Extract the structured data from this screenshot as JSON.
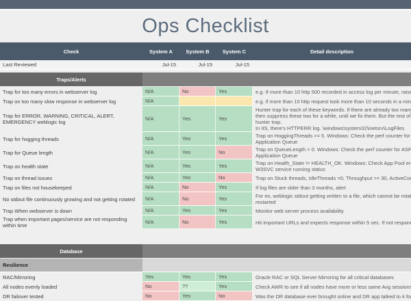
{
  "app": {
    "title": "Ops Checklist"
  },
  "colors": {
    "topbar": "#566372",
    "header": "#4a5a6b",
    "title_text": "#5c6c7d",
    "section_left": "#666666",
    "section_right": "#7f7f7f",
    "subsection_left": "#b4b4b4",
    "subsection_right": "#d9d9d9",
    "status_green": "#b5dec2",
    "status_lightgreen": "#cfeed6",
    "status_red": "#f2c4c3",
    "status_yellow": "#f9e7ad",
    "page_bg": "#efefef"
  },
  "table": {
    "columns": [
      "Check",
      "System A",
      "System B",
      "System C",
      "Detail description"
    ],
    "last_reviewed": {
      "label": "Last Reviewed",
      "values": [
        "Jul-15",
        "Jul-15",
        "Jul-15"
      ]
    },
    "sections": [
      {
        "title": "Traps/Alerts",
        "rows": [
          {
            "check": "Trap for too many errors in webserver log",
            "cells": [
              {
                "text": "N/A",
                "status": "green"
              },
              {
                "text": "No",
                "status": "red"
              },
              {
                "text": "Yes",
                "status": "green"
              }
            ],
            "detail_lines": [
              "e.g. If more than 10 http 500 recorded in access log per minute, raise trap."
            ]
          },
          {
            "check": "Trap on too many slow response in webserver log",
            "cells": [
              {
                "text": "N/A",
                "status": "green"
              },
              {
                "text": "",
                "status": "yellow"
              },
              {
                "text": "",
                "status": "yellow"
              }
            ],
            "detail_lines": [
              "e.g. if more than 10 http request took more than 10 seconds in a minute, raise"
            ]
          },
          {
            "check": "Trap for ERROR, WARNING, CRITICAL, ALERT, EMERGENCY weblogic log",
            "cells": [
              {
                "text": "N/A",
                "status": "green"
              },
              {
                "text": "Yes",
                "status": "green"
              },
              {
                "text": "Yes",
                "status": "green"
              }
            ],
            "detail_lines": [
              "Hunter trap for each of these keywords. If there are already too many ERROR a",
              "then suppress these two for a while, until we fix them. But the rest of the keyw",
              "hunter trap.",
              " In IIS, there's HTTPERR log. \\windows\\system32\\inetsrv\\LogFiles"
            ]
          },
          {
            "check": "Trap for hogging threads",
            "cells": [
              {
                "text": "N/A",
                "status": "green"
              },
              {
                "text": "Yes",
                "status": "green"
              },
              {
                "text": "Yes",
                "status": "green"
              }
            ],
            "detail_lines": [
              "Trap on HoggingThreads >= 5. Windows: Check the perf counter for ASP.NET R",
              "Application Queue"
            ]
          },
          {
            "check": "Trap for Queue length",
            "cells": [
              {
                "text": "N/A",
                "status": "green"
              },
              {
                "text": "Yes",
                "status": "green"
              },
              {
                "text": "No",
                "status": "red"
              }
            ],
            "detail_lines": [
              "Trap on QueueLength > 0. Windows: Check the perf counter for ASP.NET Requ",
              "Application Queue"
            ]
          },
          {
            "check": "Trap on health state",
            "cells": [
              {
                "text": "N/A",
                "status": "green"
              },
              {
                "text": "Yes",
                "status": "green"
              },
              {
                "text": "Yes",
                "status": "green"
              }
            ],
            "detail_lines": [
              "Trap on Health_State != HEALTH_OK. Windows: Check App Pool enabled, Webs",
              "W3SVC service running status"
            ]
          },
          {
            "check": "Trap on thread issues",
            "cells": [
              {
                "text": "N/A",
                "status": "green"
              },
              {
                "text": "Yes",
                "status": "green"
              },
              {
                "text": "No",
                "status": "red"
              }
            ],
            "detail_lines": [
              "Trap on Stuck threads, IdleThreads =0, Throughput >= 30, ActiveConnectionsH"
            ]
          },
          {
            "check": "Trap on files not housekeeped",
            "cells": [
              {
                "text": "N/A",
                "status": "green"
              },
              {
                "text": "No",
                "status": "red"
              },
              {
                "text": "Yes",
                "status": "green"
              }
            ],
            "detail_lines": [
              "If log files are older than 3 months, alert"
            ]
          },
          {
            "check": "No stdout file continuously growing and not getting rotated",
            "cells": [
              {
                "text": "N/A",
                "status": "green"
              },
              {
                "text": "No",
                "status": "red"
              },
              {
                "text": "Yes",
                "status": "green"
              }
            ],
            "detail_lines": [
              "For ex, weblogic stdout getting written to a file, which cannot be rotated, unles",
              "restarted"
            ]
          },
          {
            "check": "Trap When webserver is down",
            "cells": [
              {
                "text": "N/A",
                "status": "green"
              },
              {
                "text": "Yes",
                "status": "green"
              },
              {
                "text": "Yes",
                "status": "green"
              }
            ],
            "detail_lines": [
              "Monitor web server process availability"
            ]
          },
          {
            "check": "Trap when important pages/service are not responding within time",
            "cells": [
              {
                "text": "N/A",
                "status": "green"
              },
              {
                "text": "No",
                "status": "red"
              },
              {
                "text": "Yes",
                "status": "green"
              }
            ],
            "detail_lines": [
              "Hit important URLs and expects response within 5 sec. If not responded or err"
            ]
          }
        ]
      },
      {
        "title": "Database",
        "subtitle": "Resilience",
        "rows": [
          {
            "check": "RAC/Mirroring",
            "cells": [
              {
                "text": "Yes",
                "status": "green"
              },
              {
                "text": "Yes",
                "status": "green"
              },
              {
                "text": "Yes",
                "status": "green"
              }
            ],
            "detail_lines": [
              "Oracle RAC or SQL Server Mirroring for all critical databases"
            ]
          },
          {
            "check": "All nodes evenly loaded",
            "cells": [
              {
                "text": "No",
                "status": "red"
              },
              {
                "text": "??",
                "status": "lightgreen"
              },
              {
                "text": "Yes",
                "status": "green"
              }
            ],
            "detail_lines": [
              "Check AWR to see if all nodes have more or less same Avg sessions, CPU, IO l"
            ]
          },
          {
            "check": "DR failover tested",
            "cells": [
              {
                "text": "No",
                "status": "red"
              },
              {
                "text": "Yes",
                "status": "green"
              },
              {
                "text": "No",
                "status": "red"
              }
            ],
            "detail_lines": [
              "Was the DR database ever brought online and DR app talked to it for a while?"
            ]
          }
        ]
      }
    ]
  }
}
